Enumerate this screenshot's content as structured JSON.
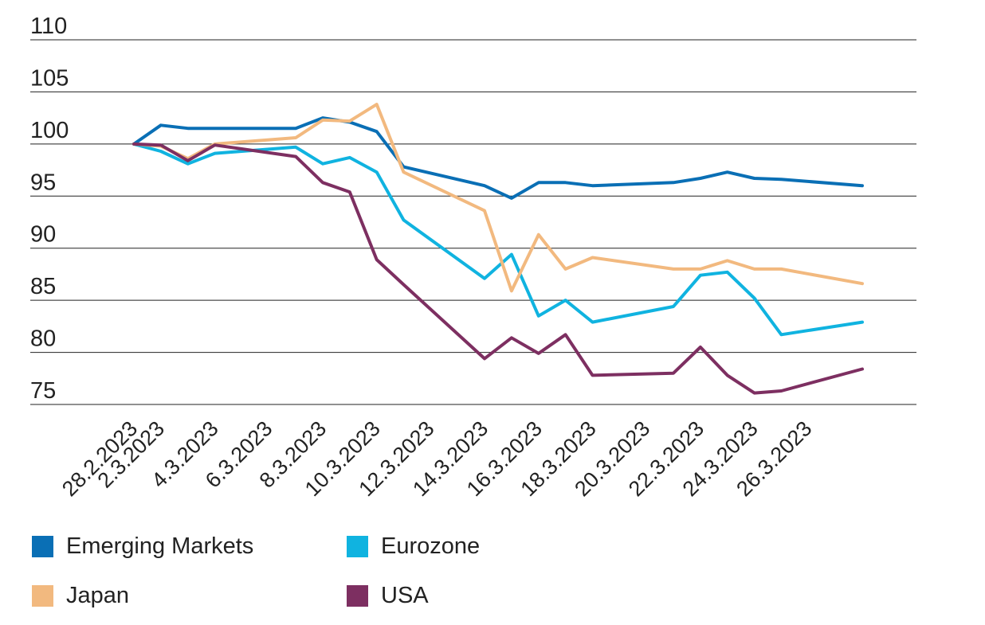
{
  "chart_data": {
    "type": "line",
    "title": "",
    "xlabel": "",
    "ylabel": "",
    "ylim": [
      75,
      110
    ],
    "y_ticks": [
      "110",
      "105",
      "100",
      "95",
      "90",
      "85",
      "80",
      "75"
    ],
    "y_tick_values": [
      110,
      105,
      100,
      95,
      90,
      85,
      80,
      75
    ],
    "x_ticks": [
      "28.2.2023",
      "2.3.2023",
      "4.3.2023",
      "6.3.2023",
      "8.3.2023",
      "10.3.2023",
      "12.3.2023",
      "14.3.2023",
      "16.3.2023",
      "18.3.2023",
      "20.3.2023",
      "22.3.2023",
      "24.3.2023",
      "26.3.2023"
    ],
    "grid": "horizontal",
    "legend_position": "bottom",
    "dates": [
      "2023-02-28",
      "2023-03-01",
      "2023-03-02",
      "2023-03-03",
      "2023-03-06",
      "2023-03-07",
      "2023-03-08",
      "2023-03-09",
      "2023-03-10",
      "2023-03-13",
      "2023-03-14",
      "2023-03-15",
      "2023-03-16",
      "2023-03-17",
      "2023-03-20",
      "2023-03-21",
      "2023-03-22",
      "2023-03-23",
      "2023-03-24",
      "2023-03-27"
    ],
    "series": [
      {
        "name": "Emerging Markets",
        "color": "#0a6fb5",
        "values": [
          100,
          101.8,
          101.5,
          101.5,
          101.5,
          102.5,
          102.1,
          101.2,
          97.8,
          96.0,
          94.8,
          96.3,
          96.3,
          96.0,
          96.3,
          96.7,
          97.3,
          96.7,
          96.6,
          96.0
        ]
      },
      {
        "name": "Eurozone",
        "color": "#10b3e0",
        "values": [
          100,
          99.3,
          98.1,
          99.1,
          99.7,
          98.1,
          98.7,
          97.3,
          92.7,
          87.1,
          89.4,
          83.5,
          85.0,
          82.9,
          84.4,
          87.4,
          87.7,
          85.2,
          81.7,
          82.9
        ]
      },
      {
        "name": "Japan",
        "color": "#f2b97f",
        "values": [
          100,
          99.8,
          98.6,
          100.0,
          100.6,
          102.3,
          102.2,
          103.8,
          97.3,
          93.6,
          85.9,
          91.3,
          88.0,
          89.1,
          88.0,
          88.0,
          88.8,
          88.0,
          88.0,
          86.6
        ]
      },
      {
        "name": "USA",
        "color": "#7d2f61",
        "values": [
          100,
          99.9,
          98.4,
          99.9,
          98.8,
          96.3,
          95.4,
          88.9,
          86.5,
          79.4,
          81.4,
          79.9,
          81.7,
          77.8,
          78.0,
          80.5,
          77.8,
          76.1,
          76.3,
          78.4
        ]
      }
    ]
  }
}
